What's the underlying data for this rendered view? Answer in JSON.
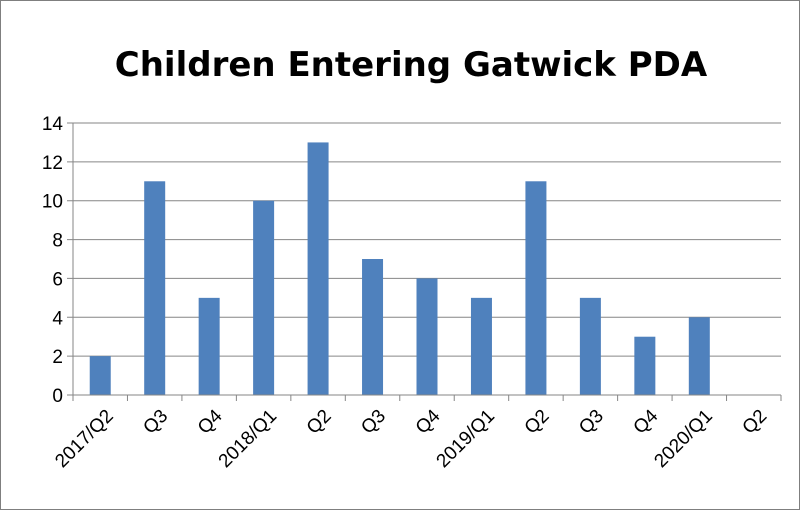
{
  "chart_data": {
    "type": "bar",
    "title": "Children Entering Gatwick PDA",
    "xlabel": "",
    "ylabel": "",
    "categories": [
      "2017/Q2",
      "Q3",
      "Q4",
      "2018/Q1",
      "Q2",
      "Q3",
      "Q4",
      "2019/Q1",
      "Q2",
      "Q3",
      "Q4",
      "2020/Q1",
      "Q2"
    ],
    "values": [
      2,
      11,
      5,
      10,
      13,
      7,
      6,
      5,
      11,
      5,
      3,
      4,
      0
    ],
    "ylim": [
      0,
      14
    ],
    "yticks": [
      0,
      2,
      4,
      6,
      8,
      10,
      12,
      14
    ],
    "grid": true,
    "legend": "none",
    "bar_color": "#4f81bd",
    "grid_color": "#868686"
  }
}
